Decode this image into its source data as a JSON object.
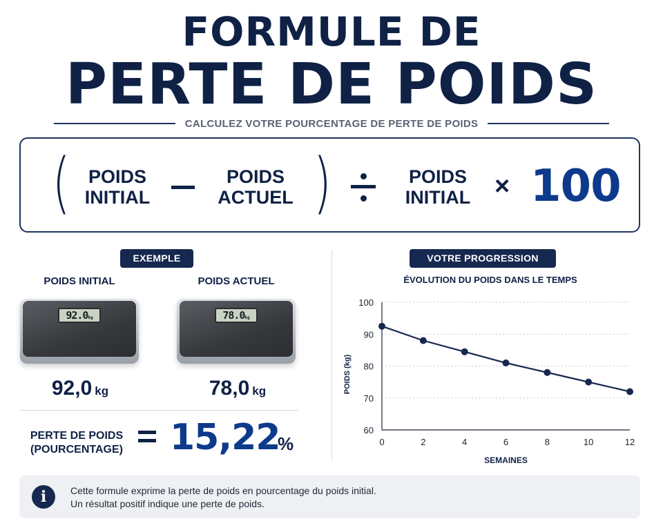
{
  "header": {
    "title_line1": "FORMULE DE",
    "title_line2": "PERTE DE POIDS",
    "subtitle": "CALCULEZ VOTRE POURCENTAGE DE PERTE DE POIDS"
  },
  "formula": {
    "open_paren": "(",
    "term1": "POIDS\nINITIAL",
    "term2": "POIDS\nACTUEL",
    "close_paren": ")",
    "term3": "POIDS\nINITIAL",
    "times": "×",
    "multiplier": "100"
  },
  "example": {
    "badge": "EXEMPLE",
    "initial_label": "POIDS INITIAL",
    "current_label": "POIDS ACTUEL",
    "initial_display": "92.0",
    "current_display": "78.0",
    "display_unit": "kg",
    "initial_value": "92,0",
    "current_value": "78,0",
    "unit": "kg",
    "loss_label": "PERTE DE POIDS\n(POURCENTAGE)",
    "equals": "=",
    "loss_value": "15,22",
    "loss_unit": "%"
  },
  "progress": {
    "badge": "VOTRE PROGRESSION"
  },
  "chart_data": {
    "type": "line",
    "title": "ÉVOLUTION DU POIDS DANS LE TEMPS",
    "xlabel": "SEMAINES",
    "ylabel": "POIDS (kg)",
    "x": [
      0,
      2,
      4,
      6,
      8,
      10,
      12
    ],
    "series": [
      {
        "values": [
          92.5,
          88,
          84.5,
          81,
          78,
          75,
          72
        ]
      }
    ],
    "xticks": [
      "0",
      "2",
      "4",
      "6",
      "8",
      "10",
      "12"
    ],
    "yticks": [
      "60",
      "70",
      "80",
      "90",
      "100"
    ],
    "xlim": [
      0,
      12
    ],
    "ylim": [
      60,
      100
    ],
    "grid": true,
    "line_color": "#16284f"
  },
  "info": {
    "icon": "i",
    "line1": "Cette formule exprime la perte de poids en pourcentage du poids initial.",
    "line2": "Un résultat positif indique une perte de poids."
  },
  "colors": {
    "navy": "#0f2145",
    "accent_blue": "#0e3a8c",
    "badge_bg": "#16284f"
  }
}
